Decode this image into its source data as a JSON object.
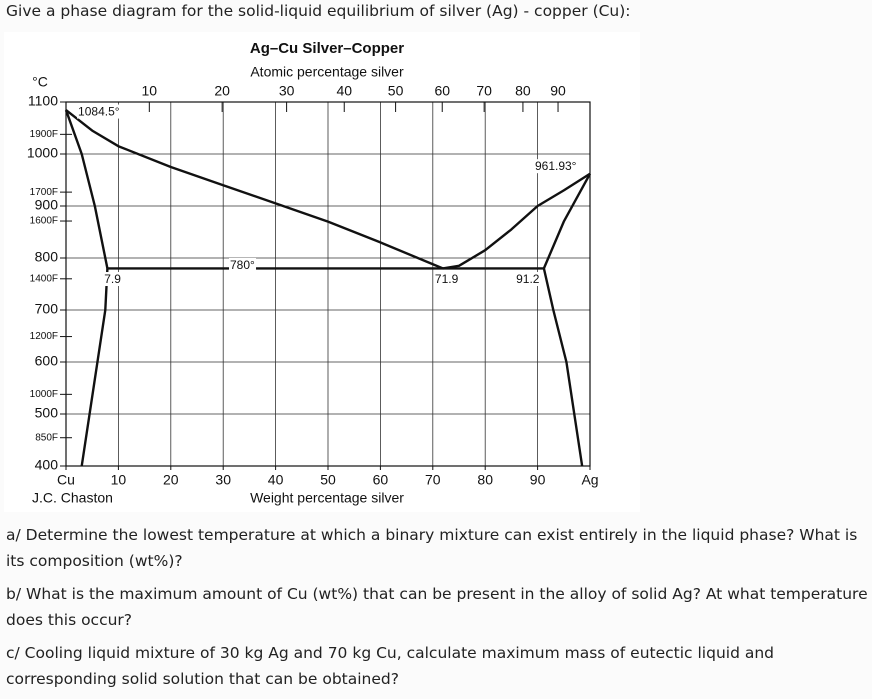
{
  "prompt": "Give a phase diagram for the solid-liquid equilibrium of silver (Ag) - copper (Cu):",
  "chart_data": {
    "type": "line",
    "title": "Ag–Cu Silver–Copper",
    "subtitle": "Atomic percentage silver",
    "xlabel": "Weight percentage silver",
    "ylabel": "°C",
    "source": "J.C. Chaston",
    "color": "#111111",
    "grid": true,
    "xlim": [
      0,
      100
    ],
    "ylim": [
      400,
      1100
    ],
    "xticks": [
      {
        "value": 0,
        "label": "Cu"
      },
      10,
      20,
      30,
      40,
      50,
      60,
      70,
      80,
      90,
      {
        "value": 100,
        "label": "Ag"
      }
    ],
    "x2ticks": [
      {
        "value": 15.9,
        "label": "10"
      },
      {
        "value": 29.8,
        "label": "20"
      },
      {
        "value": 42.1,
        "label": "30"
      },
      {
        "value": 53.1,
        "label": "40"
      },
      {
        "value": 62.9,
        "label": "50"
      },
      {
        "value": 71.8,
        "label": "60"
      },
      {
        "value": 79.8,
        "label": "70"
      },
      {
        "value": 87.2,
        "label": "80"
      },
      {
        "value": 93.9,
        "label": "90"
      }
    ],
    "yticks": [
      400,
      500,
      600,
      700,
      800,
      900,
      1000,
      1100
    ],
    "yticks_fahrenheit": [
      {
        "value": 1037.8,
        "label": "1900F"
      },
      {
        "value": 926.7,
        "label": "1700F"
      },
      {
        "value": 871.1,
        "label": "1600F"
      },
      {
        "value": 760,
        "label": "1400F"
      },
      {
        "value": 648.9,
        "label": "1200F"
      },
      {
        "value": 537.8,
        "label": "1000F"
      },
      {
        "value": 454.4,
        "label": "850F"
      }
    ],
    "series": [
      {
        "x": [
          0,
          5,
          10,
          20,
          30,
          40,
          50,
          60,
          71.9
        ],
        "values": [
          1084.5,
          1045,
          1015,
          975,
          940,
          905,
          870,
          830,
          780
        ]
      },
      {
        "x": [
          71.9,
          75,
          80,
          85,
          90,
          95,
          100
        ],
        "values": [
          780,
          785,
          815,
          855,
          900,
          930,
          961.93
        ]
      },
      {
        "x": [
          0,
          3,
          5.5,
          7.9
        ],
        "values": [
          1084.5,
          1000,
          900,
          780
        ]
      },
      {
        "x": [
          91.2,
          95,
          100
        ],
        "values": [
          780,
          870,
          961.93
        ]
      },
      {
        "x": [
          7.9,
          7.5,
          6,
          4.5,
          3
        ],
        "values": [
          780,
          700,
          600,
          500,
          400
        ]
      },
      {
        "x": [
          91.2,
          93,
          95.5,
          97,
          98.5
        ],
        "values": [
          780,
          700,
          600,
          500,
          400
        ]
      },
      {
        "x": [
          7.9,
          91.2
        ],
        "values": [
          780,
          780
        ]
      }
    ],
    "annotations": [
      {
        "text": "1084.5°",
        "x": 2.3,
        "y": 1080
      },
      {
        "text": "961.93°",
        "x": 89.5,
        "y": 975
      },
      {
        "text": "780°",
        "x": 31.3,
        "y": 785
      },
      {
        "text": "7.9",
        "x": 7.3,
        "y": 758
      },
      {
        "text": "71.9",
        "x": 70.4,
        "y": 758
      },
      {
        "text": "91.2",
        "x": 85.9,
        "y": 758
      }
    ]
  },
  "questions": [
    "a/ Determine the lowest temperature at which a binary mixture can exist entirely in the liquid phase? What is its composition (wt%)?",
    "b/ What is the maximum amount of Cu (wt%) that can be present in the alloy of solid Ag? At what temperature does this occur?",
    "c/ Cooling liquid mixture of 30 kg Ag and 70 kg Cu, calculate maximum mass of eutectic liquid and corresponding solid solution that can be obtained?"
  ]
}
